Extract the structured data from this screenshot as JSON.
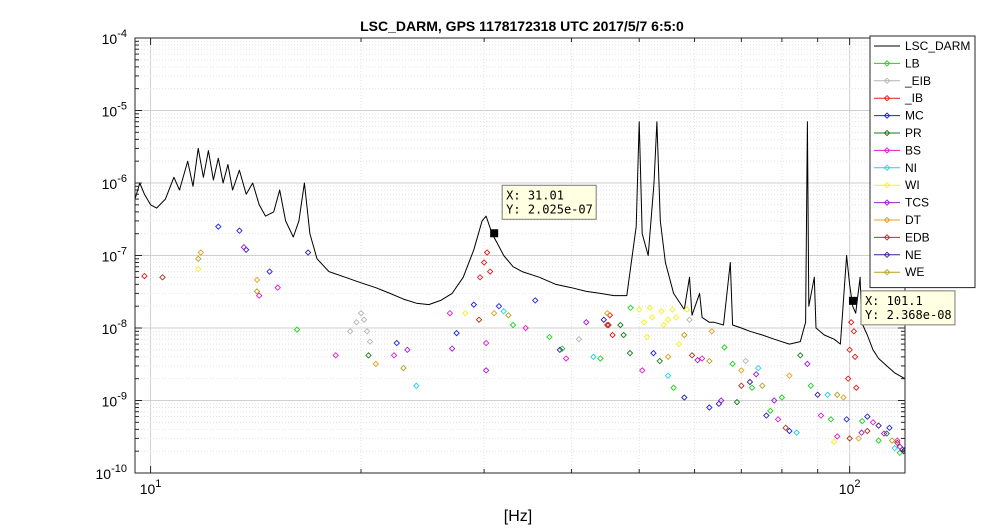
{
  "chart_data": {
    "type": "line",
    "title": "LSC_DARM, GPS 1178172318 UTC 2017/5/7 6:5:0",
    "xlabel": "[Hz]",
    "ylabel": "",
    "xscale": "log",
    "yscale": "log",
    "xlim": [
      9.5,
      120
    ],
    "ylim": [
      1e-10,
      0.0001
    ],
    "grid": true,
    "legend_position": "top-right",
    "x_tick_labels": [
      {
        "value": 10,
        "mantissa": "10",
        "exp": "1"
      },
      {
        "value": 100,
        "mantissa": "10",
        "exp": "2"
      }
    ],
    "y_tick_labels": [
      {
        "value": 0.0001,
        "mantissa": "10",
        "exp": "-4"
      },
      {
        "value": 1e-05,
        "mantissa": "10",
        "exp": "-5"
      },
      {
        "value": 1e-06,
        "mantissa": "10",
        "exp": "-6"
      },
      {
        "value": 1e-07,
        "mantissa": "10",
        "exp": "-7"
      },
      {
        "value": 1e-08,
        "mantissa": "10",
        "exp": "-8"
      },
      {
        "value": 1e-09,
        "mantissa": "10",
        "exp": "-9"
      },
      {
        "value": 1e-10,
        "mantissa": "10",
        "exp": "-10"
      }
    ],
    "series": [
      {
        "name": "LSC_DARM",
        "color": "#000000",
        "kind": "line",
        "points": [
          [
            9.5,
            6e-07
          ],
          [
            9.65,
            1e-06
          ],
          [
            9.8,
            7e-07
          ],
          [
            10.0,
            5e-07
          ],
          [
            10.2,
            4.5e-07
          ],
          [
            10.5,
            6e-07
          ],
          [
            10.8,
            1.2e-06
          ],
          [
            11.0,
            8e-07
          ],
          [
            11.3,
            2e-06
          ],
          [
            11.5,
            9e-07
          ],
          [
            11.7,
            3e-06
          ],
          [
            11.9,
            1.2e-06
          ],
          [
            12.1,
            2.8e-06
          ],
          [
            12.3,
            1.1e-06
          ],
          [
            12.5,
            2.2e-06
          ],
          [
            12.7,
            1e-06
          ],
          [
            12.9,
            1.8e-06
          ],
          [
            13.1,
            8e-07
          ],
          [
            13.4,
            1.5e-06
          ],
          [
            13.7,
            7e-07
          ],
          [
            14.0,
            1e-06
          ],
          [
            14.3,
            5e-07
          ],
          [
            14.6,
            3.5e-07
          ],
          [
            15.0,
            4e-07
          ],
          [
            15.3,
            8e-07
          ],
          [
            15.6,
            3e-07
          ],
          [
            16.0,
            1.8e-07
          ],
          [
            16.3,
            3e-07
          ],
          [
            16.6,
            1e-06
          ],
          [
            16.9,
            2e-07
          ],
          [
            17.3,
            9e-08
          ],
          [
            18.0,
            6e-08
          ],
          [
            19.0,
            5e-08
          ],
          [
            20.0,
            4.2e-08
          ],
          [
            21.0,
            3.6e-08
          ],
          [
            22.0,
            3e-08
          ],
          [
            23.0,
            2.5e-08
          ],
          [
            24.0,
            2.2e-08
          ],
          [
            25.0,
            2.1e-08
          ],
          [
            26.0,
            2.4e-08
          ],
          [
            27.0,
            3e-08
          ],
          [
            28.0,
            5e-08
          ],
          [
            29.0,
            1.2e-07
          ],
          [
            29.8,
            3e-07
          ],
          [
            30.2,
            3.5e-07
          ],
          [
            30.8,
            2e-07
          ],
          [
            31.3,
            1.5e-07
          ],
          [
            32.0,
            1e-07
          ],
          [
            33.0,
            7e-08
          ],
          [
            34.0,
            6e-08
          ],
          [
            36.0,
            5e-08
          ],
          [
            38.0,
            4e-08
          ],
          [
            40.0,
            3.6e-08
          ],
          [
            42.0,
            3.2e-08
          ],
          [
            44.0,
            3e-08
          ],
          [
            46.0,
            2.8e-08
          ],
          [
            48.0,
            2.8e-08
          ],
          [
            49.5,
            2.5e-07
          ],
          [
            50.0,
            7e-06
          ],
          [
            50.5,
            2e-07
          ],
          [
            51.5,
            1e-07
          ],
          [
            52.5,
            1e-06
          ],
          [
            53.0,
            7e-06
          ],
          [
            53.6,
            3e-07
          ],
          [
            54.5,
            8e-08
          ],
          [
            56.0,
            3e-08
          ],
          [
            58.0,
            1.8e-08
          ],
          [
            59.0,
            5e-08
          ],
          [
            59.5,
            1.5e-08
          ],
          [
            61.0,
            3e-08
          ],
          [
            61.5,
            1.4e-08
          ],
          [
            63.0,
            1.2e-08
          ],
          [
            64.0,
            1.2e-08
          ],
          [
            66.0,
            1.1e-08
          ],
          [
            67.5,
            8e-08
          ],
          [
            68.0,
            1.1e-08
          ],
          [
            70.0,
            1e-08
          ],
          [
            72.0,
            9e-09
          ],
          [
            75.0,
            8e-09
          ],
          [
            78.0,
            7e-09
          ],
          [
            82.0,
            6e-09
          ],
          [
            85.0,
            6.5e-09
          ],
          [
            86.5,
            1.2e-08
          ],
          [
            87.0,
            7e-06
          ],
          [
            87.4,
            2e-08
          ],
          [
            89.0,
            5e-08
          ],
          [
            89.5,
            1e-08
          ],
          [
            92.0,
            8e-09
          ],
          [
            95.0,
            7e-09
          ],
          [
            97.0,
            6e-09
          ],
          [
            99.0,
            1e-07
          ],
          [
            100.0,
            4e-08
          ],
          [
            101.0,
            2e-08
          ],
          [
            102.0,
            1.6e-08
          ],
          [
            103.5,
            5e-08
          ],
          [
            104.0,
            1.2e-08
          ],
          [
            106.0,
            8e-09
          ],
          [
            108.0,
            5e-09
          ],
          [
            110.0,
            3.8e-09
          ],
          [
            113.0,
            3e-09
          ],
          [
            116.0,
            2.4e-09
          ],
          [
            120.0,
            2e-09
          ]
        ]
      },
      {
        "name": "LB",
        "color": "#1fd11f",
        "kind": "points",
        "points": [
          [
            16.2,
            9.5e-09
          ],
          [
            33.0,
            1.1e-08
          ],
          [
            37.2,
            7.5e-09
          ],
          [
            38.8,
            5.2e-09
          ],
          [
            44.0,
            3.8e-09
          ],
          [
            48.6,
            1.9e-08
          ],
          [
            56.0,
            1.5e-09
          ],
          [
            66.2,
            5.4e-09
          ],
          [
            68.0,
            3.2e-09
          ],
          [
            72.5,
            1.5e-09
          ],
          [
            77.0,
            7.2e-10
          ],
          [
            80.0,
            1.1e-09
          ],
          [
            88.0,
            1.6e-09
          ],
          [
            94.0,
            5.5e-10
          ],
          [
            104.2,
            5.2e-10
          ],
          [
            110.0,
            2.8e-10
          ],
          [
            118.0,
            1.9e-10
          ]
        ]
      },
      {
        "name": "_EIB",
        "color": "#b4b4b4",
        "kind": "points",
        "points": [
          [
            19.3,
            9e-09
          ],
          [
            19.7,
            1.2e-08
          ],
          [
            20.0,
            1.6e-08
          ],
          [
            20.2,
            1.3e-08
          ],
          [
            20.4,
            9e-09
          ],
          [
            20.6,
            6.5e-09
          ],
          [
            41.0,
            7e-09
          ],
          [
            59.0,
            1.3e-08
          ],
          [
            71.0,
            3.5e-09
          ]
        ]
      },
      {
        "name": "_IB",
        "color": "#e01c1c",
        "kind": "points",
        "points": [
          [
            9.8,
            5.2e-08
          ],
          [
            29.6,
            5e-08
          ],
          [
            30.0,
            8e-08
          ],
          [
            30.3,
            1.1e-07
          ],
          [
            30.6,
            6e-08
          ],
          [
            45.0,
            1.1e-08
          ],
          [
            45.4,
            1.5e-08
          ],
          [
            45.8,
            8e-09
          ],
          [
            99.5,
            2e-09
          ],
          [
            100.0,
            5e-09
          ],
          [
            100.5,
            1.2e-08
          ],
          [
            101.0,
            2.4e-08
          ],
          [
            101.4,
            9e-09
          ],
          [
            101.8,
            4e-09
          ],
          [
            102.2,
            1.5e-09
          ]
        ]
      },
      {
        "name": "MC",
        "color": "#1f1fe0",
        "kind": "points",
        "points": [
          [
            12.5,
            2.5e-07
          ],
          [
            13.4,
            2.2e-07
          ],
          [
            13.7,
            1.2e-07
          ],
          [
            14.8,
            6e-08
          ],
          [
            22.5,
            6.2e-09
          ],
          [
            27.4,
            8.5e-09
          ],
          [
            29.0,
            2.1e-08
          ],
          [
            31.5,
            2e-08
          ],
          [
            35.5,
            2.4e-08
          ],
          [
            52.4,
            4.5e-09
          ],
          [
            58.0,
            1.1e-09
          ],
          [
            63.0,
            8e-10
          ],
          [
            65.0,
            9e-10
          ],
          [
            76.0,
            6.2e-10
          ],
          [
            82.0,
            3.8e-10
          ],
          [
            99.0,
            5.5e-10
          ],
          [
            106.0,
            6e-10
          ],
          [
            114.0,
            4.2e-10
          ],
          [
            119.0,
            2.1e-10
          ]
        ]
      },
      {
        "name": "PR",
        "color": "#1a7a1a",
        "kind": "points",
        "points": [
          [
            20.5,
            4.2e-09
          ],
          [
            47.0,
            1.1e-08
          ],
          [
            47.5,
            8e-09
          ],
          [
            48.5,
            4.5e-09
          ],
          [
            53.5,
            3.5e-09
          ],
          [
            69.0,
            9.5e-10
          ],
          [
            85.0,
            4.2e-09
          ],
          [
            113.0,
            3.5e-10
          ],
          [
            120.0,
            2.1e-10
          ]
        ]
      },
      {
        "name": "BS",
        "color": "#e01cd1",
        "kind": "points",
        "points": [
          [
            14.3,
            2.8e-08
          ],
          [
            15.2,
            3.6e-08
          ],
          [
            18.4,
            4.2e-09
          ],
          [
            22.3,
            4.2e-09
          ],
          [
            26.8,
            1.6e-08
          ],
          [
            30.2,
            6.2e-09
          ],
          [
            34.4,
            1e-08
          ],
          [
            39.3,
            3.8e-09
          ],
          [
            50.5,
            2.6e-09
          ],
          [
            61.5,
            3.8e-09
          ],
          [
            79.0,
            5.5e-10
          ],
          [
            91.0,
            6.2e-10
          ],
          [
            96.0,
            3.2e-10
          ],
          [
            108.0,
            5e-10
          ],
          [
            117.0,
            2.8e-10
          ]
        ]
      },
      {
        "name": "NI",
        "color": "#1fd1e8",
        "kind": "points",
        "points": [
          [
            24.0,
            1.6e-09
          ],
          [
            32.0,
            1.7e-08
          ],
          [
            43.0,
            4e-09
          ],
          [
            55.0,
            2.2e-09
          ],
          [
            74.0,
            2.8e-09
          ],
          [
            84.0,
            3.6e-10
          ],
          [
            93.0,
            1.2e-09
          ],
          [
            116.0,
            2.2e-10
          ]
        ]
      },
      {
        "name": "WI",
        "color": "#f2f21e",
        "kind": "points",
        "points": [
          [
            11.7,
            6.5e-08
          ],
          [
            28.2,
            1.6e-08
          ],
          [
            50.0,
            1.8e-08
          ],
          [
            50.8,
            1.2e-08
          ],
          [
            51.3,
            7.5e-09
          ],
          [
            51.8,
            1.9e-08
          ],
          [
            52.2,
            1.4e-08
          ],
          [
            53.8,
            1.7e-08
          ],
          [
            54.2,
            1.1e-08
          ],
          [
            55.0,
            1.3e-08
          ],
          [
            55.8,
            1.8e-08
          ],
          [
            56.5,
            1.4e-08
          ],
          [
            57.0,
            6e-09
          ],
          [
            58.5,
            1.8e-08
          ],
          [
            95.0,
            2.7e-10
          ]
        ]
      },
      {
        "name": "TCS",
        "color": "#a01cd1",
        "kind": "points",
        "points": [
          [
            13.6,
            1.3e-07
          ],
          [
            23.3,
            5e-09
          ],
          [
            27.0,
            5.2e-09
          ],
          [
            30.2,
            2.6e-09
          ],
          [
            42.0,
            1.2e-08
          ],
          [
            60.6,
            3.6e-09
          ],
          [
            65.5,
            1e-09
          ],
          [
            73.5,
            2.3e-09
          ],
          [
            78.0,
            1e-09
          ],
          [
            87.0,
            3.2e-09
          ],
          [
            104.0,
            3.6e-10
          ],
          [
            112.0,
            3.5e-10
          ],
          [
            118.0,
            2.3e-10
          ]
        ]
      },
      {
        "name": "DT",
        "color": "#e6a01e",
        "kind": "points",
        "points": [
          [
            11.8,
            1.1e-07
          ],
          [
            14.2,
            4.6e-08
          ],
          [
            21.0,
            3.2e-09
          ],
          [
            31.0,
            1.6e-08
          ],
          [
            45.0,
            1.6e-08
          ],
          [
            55.0,
            4e-09
          ],
          [
            63.5,
            9e-09
          ],
          [
            70.0,
            2.6e-09
          ],
          [
            82.0,
            2.2e-09
          ],
          [
            98.0,
            1.1e-09
          ],
          [
            103.0,
            3e-10
          ],
          [
            120.0,
            2e-10
          ]
        ]
      },
      {
        "name": "EDB",
        "color": "#b0321e",
        "kind": "points",
        "points": [
          [
            10.4,
            5e-08
          ],
          [
            29.5,
            1.3e-08
          ],
          [
            45.2,
            1.1e-08
          ],
          [
            59.5,
            4.2e-09
          ],
          [
            70.0,
            1.6e-09
          ],
          [
            81.0,
            4.2e-10
          ],
          [
            100.0,
            3e-10
          ],
          [
            106.0,
            3.8e-10
          ],
          [
            117.0,
            2.6e-10
          ]
        ]
      },
      {
        "name": "NE",
        "color": "#3a1e9e",
        "kind": "points",
        "points": [
          [
            16.8,
            1.1e-07
          ],
          [
            38.5,
            5e-09
          ],
          [
            44.5,
            1.3e-08
          ],
          [
            72.0,
            1.8e-09
          ],
          [
            90.0,
            1.2e-09
          ],
          [
            110.0,
            4.5e-10
          ],
          [
            119.5,
            2e-10
          ]
        ]
      },
      {
        "name": "WE",
        "color": "#b4a01e",
        "kind": "points",
        "points": [
          [
            11.7,
            9e-08
          ],
          [
            14.2,
            3.2e-08
          ],
          [
            23.0,
            2.8e-09
          ],
          [
            32.5,
            1.5e-08
          ],
          [
            58.0,
            8e-09
          ],
          [
            63.0,
            3.5e-09
          ],
          [
            75.0,
            1.6e-09
          ],
          [
            96.0,
            1.2e-09
          ],
          [
            115.0,
            2.8e-10
          ]
        ]
      }
    ],
    "annotations": [
      {
        "label_x": "X: 31.01",
        "label_y": "Y: 2.025e-07",
        "x": 31.01,
        "y": 2.025e-07
      },
      {
        "label_x": "X: 101.1",
        "label_y": "Y: 2.368e-08",
        "x": 101.1,
        "y": 2.368e-08
      }
    ]
  }
}
